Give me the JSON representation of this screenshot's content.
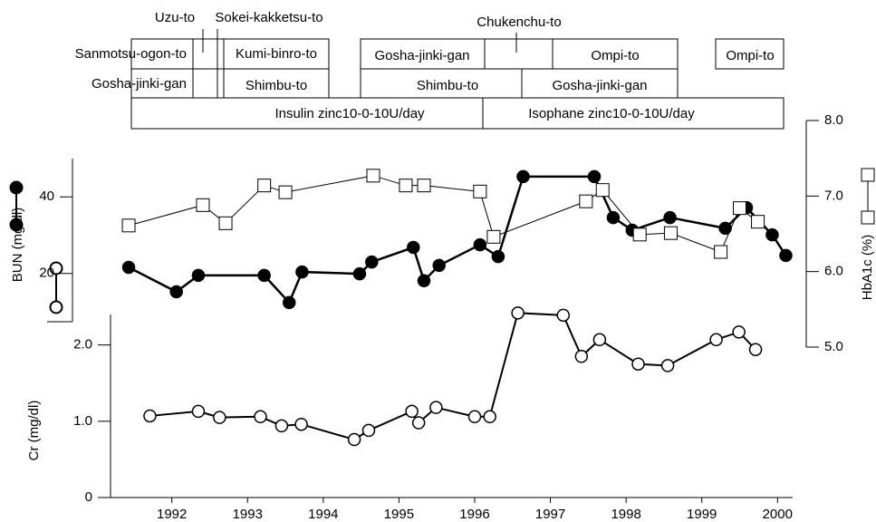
{
  "treatments": [
    "Uzu-to",
    "Sokei-kakketsu-to",
    "Chukenchu-to",
    "Sanmotsu-ogon-to",
    "Kumi-binro-to",
    "Gosha-jinki-gan",
    "Ompi-to",
    "Ompi-to",
    "Gosha-jinki-gan",
    "Shimbu-to",
    "Shimbu-to",
    "Gosha-jinki-gan",
    "Insulin zinc10-0-10U/day",
    "Isophane zinc10-0-10U/day"
  ],
  "chart_data": {
    "type": "line",
    "ylabel": "BUN (mg/dl)",
    "y2label": "HbA1c (%)",
    "y3label": "Cr (mg/dl)",
    "xlim": [
      1991.19,
      2000.2
    ],
    "xticks": [
      1992,
      1993,
      1994,
      1995,
      1996,
      1997,
      1998,
      1999,
      2000
    ],
    "ylim": [
      7.4,
      50
    ],
    "yticks": [
      20,
      40
    ],
    "y2lim": [
      5,
      8
    ],
    "y2ticks": [
      {
        "value": 5,
        "label": "5.0"
      },
      {
        "value": 6,
        "label": "6.0"
      },
      {
        "value": 7,
        "label": "7.0"
      },
      {
        "value": 8,
        "label": "8.0"
      }
    ],
    "y3lim": [
      0,
      2.4
    ],
    "y3ticks": [
      0,
      {
        "value": 1,
        "label": "1.0"
      },
      {
        "value": 2,
        "label": "2.0"
      }
    ],
    "series": [
      {
        "axis": "y",
        "color": "#000000",
        "marker": "filled-circle",
        "x": [
          1991.43,
          1992.06,
          1992.35,
          1993.22,
          1993.55,
          1993.72,
          1994.48,
          1994.64,
          1995.19,
          1995.33,
          1995.53,
          1996.07,
          1996.31,
          1996.64,
          1997.58,
          1997.83,
          1998.08,
          1998.58,
          1999.31,
          1999.59,
          1999.93,
          2000.11
        ],
        "values": [
          21.6,
          15.2,
          19.5,
          19.5,
          12.4,
          20.4,
          19.9,
          23.0,
          26.8,
          18.1,
          22.1,
          27.5,
          24.4,
          45.3,
          45.3,
          34.6,
          31.3,
          34.6,
          31.8,
          37.2,
          30.1,
          24.7
        ]
      },
      {
        "axis": "y2",
        "color": "#000000",
        "marker": "square",
        "x": [
          1991.43,
          1992.41,
          1992.71,
          1993.22,
          1993.5,
          1994.66,
          1995.09,
          1995.33,
          1996.07,
          1996.25,
          1997.47,
          1997.69,
          1998.18,
          1998.59,
          1999.25,
          1999.5,
          1999.74
        ],
        "values": [
          6.61,
          6.88,
          6.64,
          7.14,
          7.05,
          7.27,
          7.14,
          7.14,
          7.06,
          6.46,
          6.93,
          7.08,
          6.49,
          6.51,
          6.26,
          6.84,
          6.66
        ]
      },
      {
        "axis": "y3",
        "color": "#000000",
        "marker": "open-circle",
        "x": [
          1991.71,
          1992.35,
          1992.63,
          1993.17,
          1993.45,
          1993.71,
          1994.41,
          1994.6,
          1995.17,
          1995.26,
          1995.49,
          1996.0,
          1996.2,
          1996.57,
          1997.17,
          1997.41,
          1997.65,
          1998.16,
          1998.55,
          1999.19,
          1999.49,
          1999.71
        ],
        "values": [
          1.07,
          1.13,
          1.05,
          1.06,
          0.94,
          0.96,
          0.76,
          0.88,
          1.13,
          0.98,
          1.18,
          1.06,
          1.06,
          2.42,
          2.39,
          1.85,
          2.07,
          1.75,
          1.73,
          2.07,
          2.17,
          1.94
        ]
      }
    ]
  }
}
